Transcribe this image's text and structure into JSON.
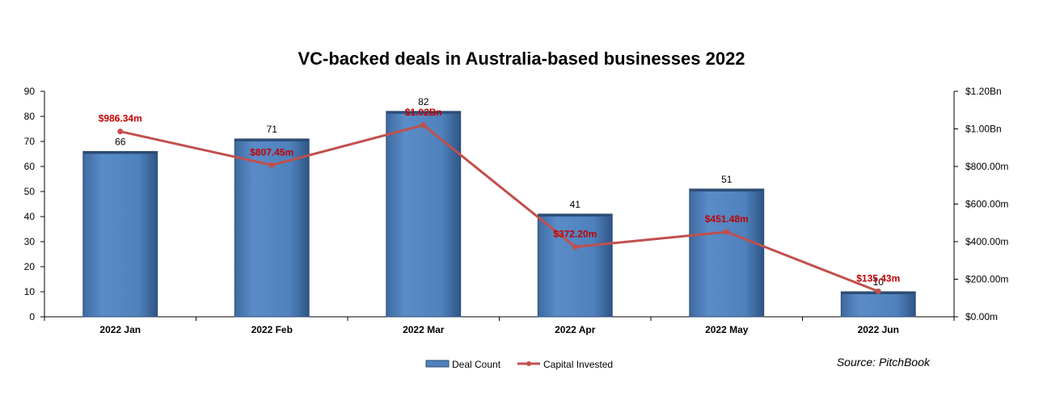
{
  "colors": {
    "bar": "#4f81bd",
    "bar_dark": "#2c4d75",
    "line": "#c0504d",
    "line_label": "#c00000",
    "axis": "#000000"
  },
  "chart_data": {
    "type": "bar",
    "title": "VC-backed deals in Australia-based businesses 2022",
    "categories": [
      "2022 Jan",
      "2022 Feb",
      "2022 Mar",
      "2022 Apr",
      "2022 May",
      "2022 Jun"
    ],
    "series": [
      {
        "name": "Deal Count",
        "type": "bar",
        "axis": "left",
        "values": [
          66,
          71,
          82,
          41,
          51,
          10
        ],
        "labels": [
          "66",
          "71",
          "82",
          "41",
          "51",
          "10"
        ]
      },
      {
        "name": "Capital Invested",
        "type": "line",
        "axis": "right",
        "unit": "millions USD",
        "values": [
          986.34,
          807.45,
          1020,
          372.2,
          451.48,
          135.43
        ],
        "labels": [
          "$986.34m",
          "$807.45m",
          "$1.02Bn",
          "$372.20m",
          "$451.48m",
          "$135.43m"
        ]
      }
    ],
    "y_left": {
      "range": [
        0,
        90
      ],
      "ticks": [
        0,
        10,
        20,
        30,
        40,
        50,
        60,
        70,
        80,
        90
      ],
      "tick_labels": [
        "0",
        "10",
        "20",
        "30",
        "40",
        "50",
        "60",
        "70",
        "80",
        "90"
      ]
    },
    "y_right": {
      "range": [
        0,
        1200
      ],
      "ticks": [
        0,
        200,
        400,
        600,
        800,
        1000,
        1200
      ],
      "tick_labels": [
        "$0.00m",
        "$200.00m",
        "$400.00m",
        "$600.00m",
        "$800.00m",
        "$1.00Bn",
        "$1.20Bn"
      ]
    },
    "grid": false,
    "legend": {
      "position": "bottom",
      "entries": [
        "Deal Count",
        "Capital Invested"
      ]
    },
    "source_note": "Source: PitchBook"
  }
}
